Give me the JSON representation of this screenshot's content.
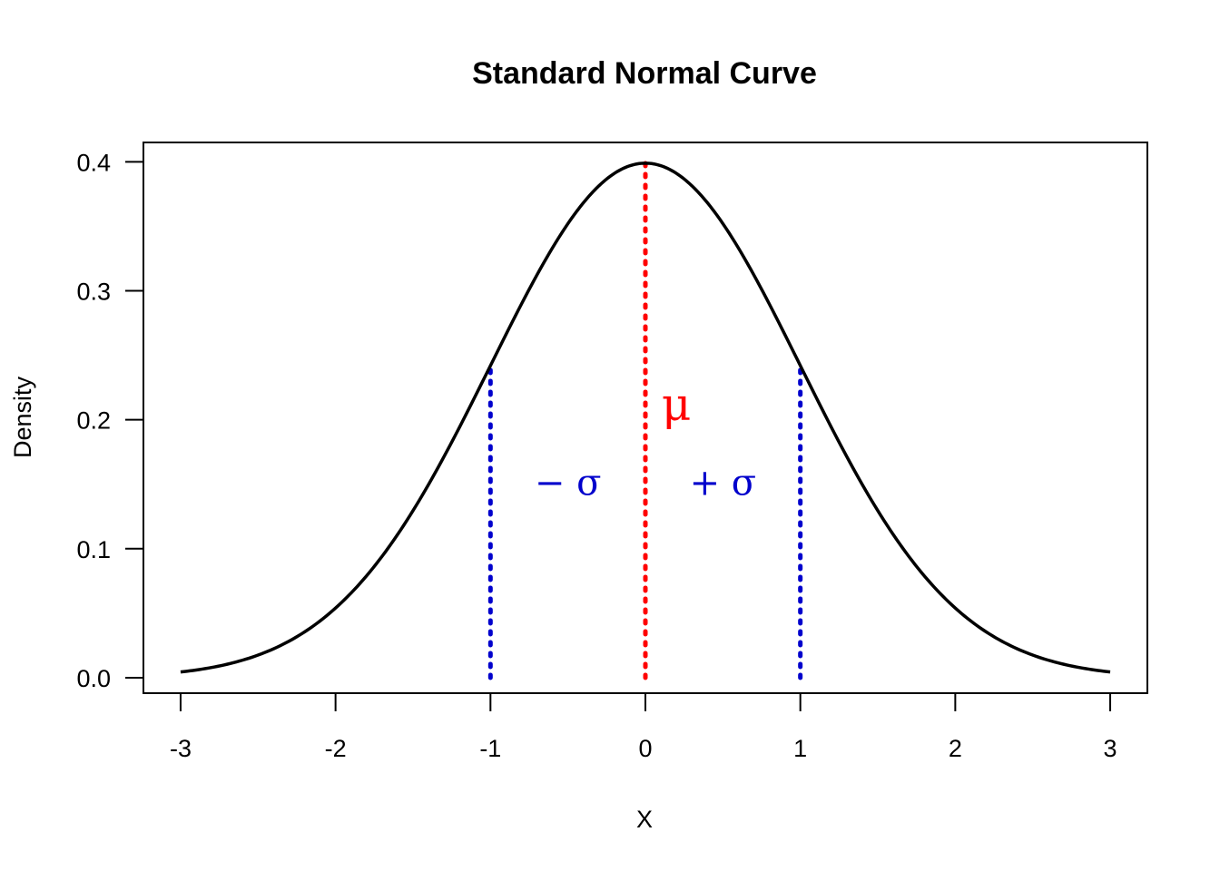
{
  "chart_data": {
    "type": "line",
    "title": "Standard Normal Curve",
    "xlabel": "X",
    "ylabel": "Density",
    "xlim": [
      -3.24,
      3.24
    ],
    "ylim": [
      -0.012,
      0.415
    ],
    "x_ticks": [
      -3,
      -2,
      -1,
      0,
      1,
      2,
      3
    ],
    "x_tick_labels": [
      "-3",
      "-2",
      "-1",
      "0",
      "1",
      "2",
      "3"
    ],
    "y_ticks": [
      0.0,
      0.1,
      0.2,
      0.3,
      0.4
    ],
    "y_tick_labels": [
      "0.0",
      "0.1",
      "0.2",
      "0.3",
      "0.4"
    ],
    "grid": false,
    "series": [
      {
        "color": "#000000",
        "function": "standard normal density",
        "x": [
          -3.0,
          -2.5,
          -2.0,
          -1.5,
          -1.0,
          -0.5,
          0.0,
          0.5,
          1.0,
          1.5,
          2.0,
          2.5,
          3.0
        ],
        "y": [
          0.0044,
          0.0175,
          0.054,
          0.1295,
          0.242,
          0.3521,
          0.3989,
          0.3521,
          0.242,
          0.1295,
          0.054,
          0.0175,
          0.0044
        ]
      }
    ],
    "reference_lines": [
      {
        "x": 0,
        "y_top": 0.3989,
        "color": "#ff0000",
        "style": "dotted"
      },
      {
        "x": -1,
        "y_top": 0.242,
        "color": "#0000cc",
        "style": "dotted"
      },
      {
        "x": 1,
        "y_top": 0.242,
        "color": "#0000cc",
        "style": "dotted"
      }
    ],
    "annotations": [
      {
        "text": "μ",
        "x": 0.2,
        "y": 0.2,
        "color": "#ff0000"
      },
      {
        "text": "− σ",
        "x": -0.5,
        "y": 0.15,
        "color": "#0000cc"
      },
      {
        "text": "+ σ",
        "x": 0.5,
        "y": 0.15,
        "color": "#0000cc"
      }
    ]
  }
}
